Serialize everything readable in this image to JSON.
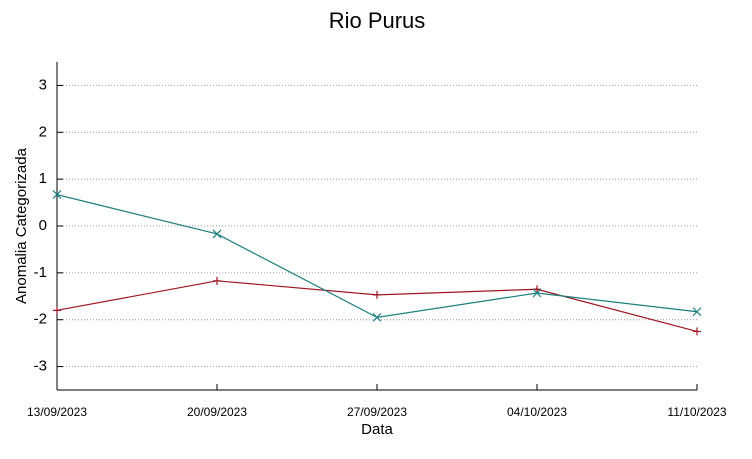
{
  "chart_data": {
    "type": "line",
    "title": "Rio Purus",
    "x_label": "Data",
    "y_label": "Anomalia Categorizada",
    "categories": [
      "13/09/2023",
      "20/09/2023",
      "27/09/2023",
      "04/10/2023",
      "11/10/2023"
    ],
    "series": [
      {
        "color": "#a0151e",
        "marker": "+",
        "values": [
          -1.8,
          -1.17,
          -1.47,
          -1.35,
          -2.25
        ]
      },
      {
        "color": "#1a7f80",
        "marker": "x",
        "values": [
          0.67,
          -0.17,
          -1.95,
          -1.43,
          -1.83
        ]
      }
    ],
    "ylim": [
      -3.5,
      3.5
    ],
    "yticks": [
      -3,
      -2,
      -1,
      0,
      1,
      2,
      3
    ],
    "grid": true
  }
}
